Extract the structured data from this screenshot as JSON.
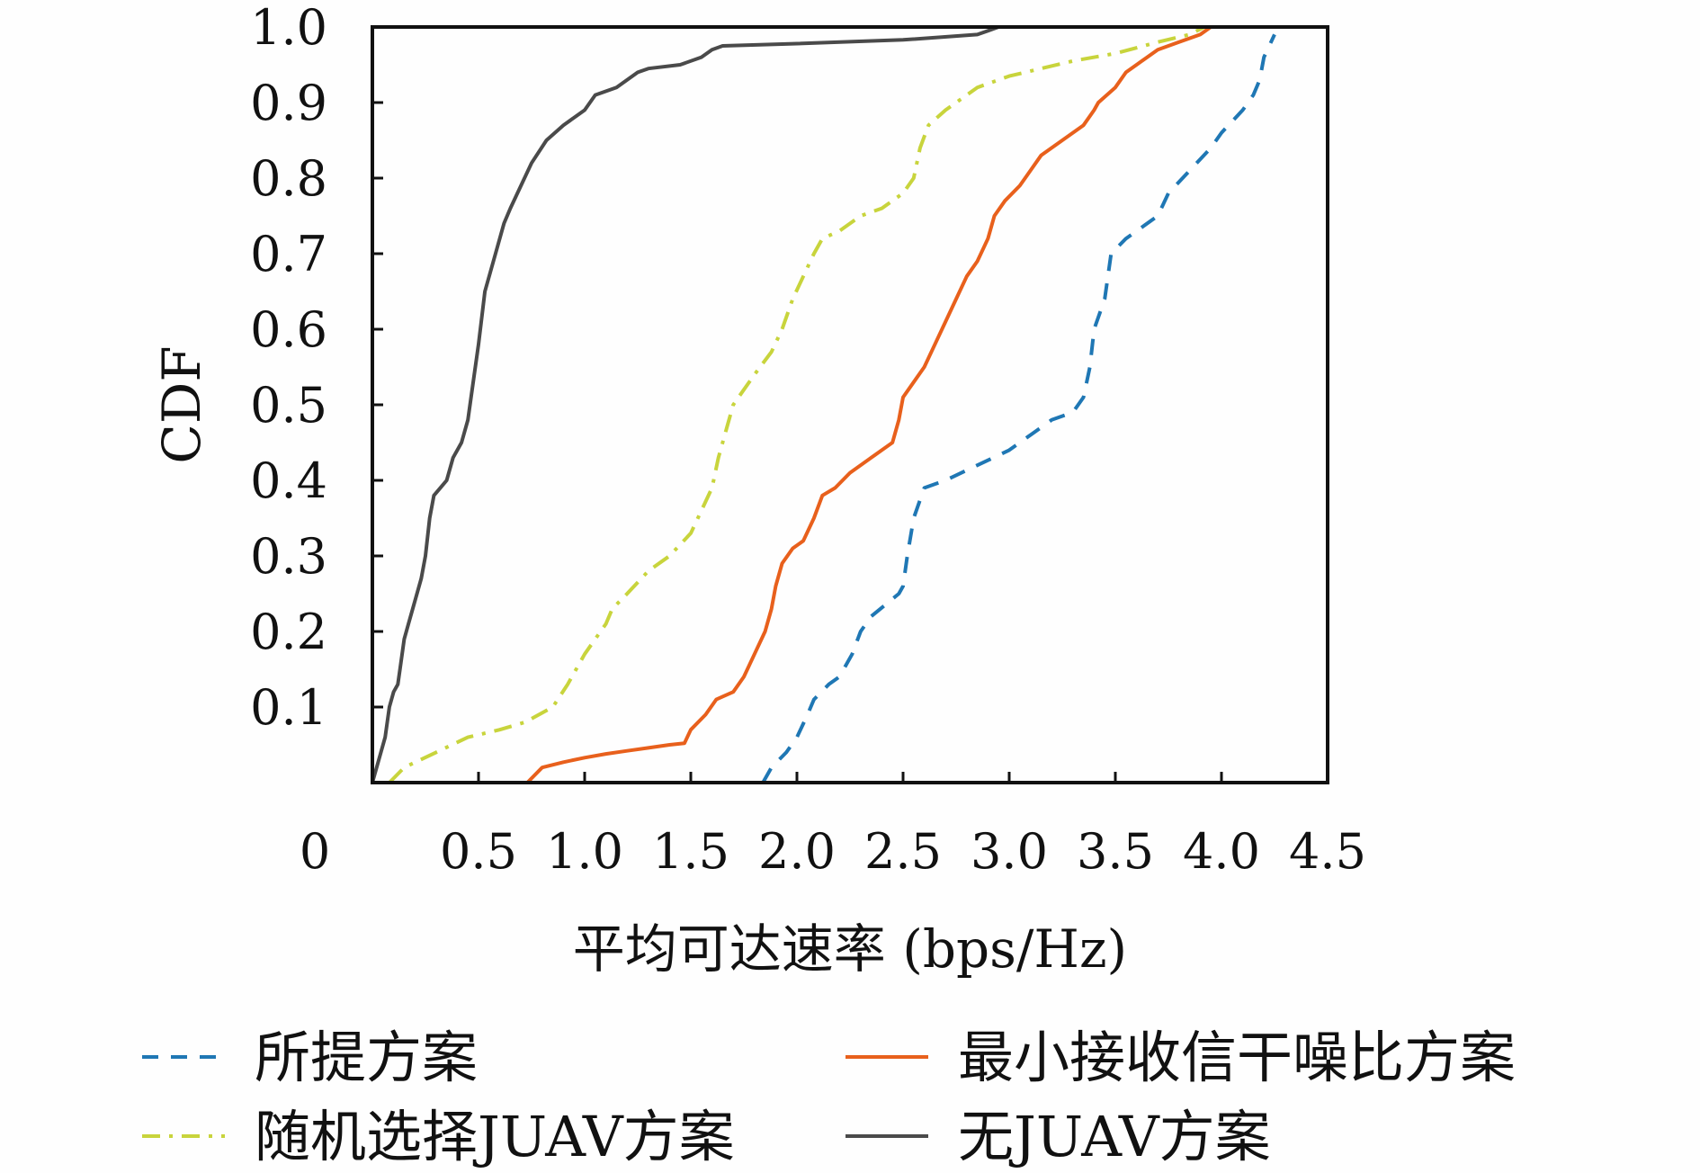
{
  "chart_data": {
    "type": "line",
    "title": "",
    "xlabel": "平均可达速率 (bps/Hz)",
    "ylabel": "CDF",
    "xlim": [
      0,
      4.5
    ],
    "ylim": [
      0,
      1.0
    ],
    "x_ticks": [
      "0",
      "0.5",
      "1.0",
      "1.5",
      "2.0",
      "2.5",
      "3.0",
      "3.5",
      "4.0",
      "4.5"
    ],
    "y_ticks": [
      "0.1",
      "0.2",
      "0.3",
      "0.4",
      "0.5",
      "0.6",
      "0.7",
      "0.8",
      "0.9",
      "1.0"
    ],
    "legend_position": "bottom",
    "grid": false,
    "series": [
      {
        "name": "所提方案",
        "color": "#1f77b4",
        "color_alt": "#3a3a3a",
        "dash": "dashed",
        "points": [
          [
            1.84,
            0
          ],
          [
            1.88,
            0.02
          ],
          [
            1.95,
            0.04
          ],
          [
            2.0,
            0.06
          ],
          [
            2.05,
            0.09
          ],
          [
            2.08,
            0.11
          ],
          [
            2.15,
            0.13
          ],
          [
            2.2,
            0.14
          ],
          [
            2.26,
            0.17
          ],
          [
            2.3,
            0.2
          ],
          [
            2.35,
            0.22
          ],
          [
            2.48,
            0.25
          ],
          [
            2.5,
            0.26
          ],
          [
            2.52,
            0.3
          ],
          [
            2.55,
            0.35
          ],
          [
            2.6,
            0.39
          ],
          [
            2.7,
            0.4
          ],
          [
            2.85,
            0.42
          ],
          [
            3.0,
            0.44
          ],
          [
            3.1,
            0.46
          ],
          [
            3.2,
            0.48
          ],
          [
            3.3,
            0.49
          ],
          [
            3.35,
            0.51
          ],
          [
            3.38,
            0.55
          ],
          [
            3.4,
            0.6
          ],
          [
            3.45,
            0.64
          ],
          [
            3.48,
            0.7
          ],
          [
            3.55,
            0.72
          ],
          [
            3.6,
            0.73
          ],
          [
            3.7,
            0.75
          ],
          [
            3.75,
            0.78
          ],
          [
            3.85,
            0.81
          ],
          [
            3.95,
            0.84
          ],
          [
            4.0,
            0.86
          ],
          [
            4.1,
            0.89
          ],
          [
            4.15,
            0.91
          ],
          [
            4.18,
            0.93
          ],
          [
            4.2,
            0.96
          ],
          [
            4.25,
            0.99
          ]
        ]
      },
      {
        "name": "最小接收信干噪比方案",
        "color": "#e8601c",
        "color_alt": "#d63c8c",
        "dash": "solid",
        "points": [
          [
            0.73,
            0
          ],
          [
            0.8,
            0.02
          ],
          [
            0.9,
            0.027
          ],
          [
            1.0,
            0.033
          ],
          [
            1.1,
            0.038
          ],
          [
            1.2,
            0.042
          ],
          [
            1.3,
            0.046
          ],
          [
            1.4,
            0.05
          ],
          [
            1.47,
            0.052
          ],
          [
            1.5,
            0.07
          ],
          [
            1.57,
            0.09
          ],
          [
            1.62,
            0.11
          ],
          [
            1.7,
            0.12
          ],
          [
            1.75,
            0.14
          ],
          [
            1.8,
            0.17
          ],
          [
            1.85,
            0.2
          ],
          [
            1.88,
            0.23
          ],
          [
            1.9,
            0.26
          ],
          [
            1.93,
            0.29
          ],
          [
            1.98,
            0.31
          ],
          [
            2.03,
            0.32
          ],
          [
            2.08,
            0.35
          ],
          [
            2.12,
            0.38
          ],
          [
            2.18,
            0.39
          ],
          [
            2.25,
            0.41
          ],
          [
            2.35,
            0.43
          ],
          [
            2.4,
            0.44
          ],
          [
            2.45,
            0.45
          ],
          [
            2.48,
            0.48
          ],
          [
            2.5,
            0.51
          ],
          [
            2.55,
            0.53
          ],
          [
            2.6,
            0.55
          ],
          [
            2.65,
            0.58
          ],
          [
            2.7,
            0.61
          ],
          [
            2.75,
            0.64
          ],
          [
            2.8,
            0.67
          ],
          [
            2.85,
            0.69
          ],
          [
            2.9,
            0.72
          ],
          [
            2.93,
            0.75
          ],
          [
            2.98,
            0.77
          ],
          [
            3.05,
            0.79
          ],
          [
            3.1,
            0.81
          ],
          [
            3.15,
            0.83
          ],
          [
            3.25,
            0.85
          ],
          [
            3.35,
            0.87
          ],
          [
            3.4,
            0.89
          ],
          [
            3.42,
            0.9
          ],
          [
            3.5,
            0.92
          ],
          [
            3.55,
            0.94
          ],
          [
            3.6,
            0.95
          ],
          [
            3.65,
            0.96
          ],
          [
            3.7,
            0.97
          ],
          [
            3.8,
            0.98
          ],
          [
            3.9,
            0.99
          ],
          [
            3.95,
            1.0
          ]
        ]
      },
      {
        "name": "随机选择JUAV方案",
        "color": "#c8d43c",
        "color_alt": "#f0a030",
        "dash": "dashdot",
        "points": [
          [
            0.08,
            0
          ],
          [
            0.15,
            0.02
          ],
          [
            0.3,
            0.04
          ],
          [
            0.45,
            0.06
          ],
          [
            0.6,
            0.07
          ],
          [
            0.72,
            0.08
          ],
          [
            0.85,
            0.1
          ],
          [
            0.92,
            0.13
          ],
          [
            1.0,
            0.17
          ],
          [
            1.1,
            0.21
          ],
          [
            1.13,
            0.23
          ],
          [
            1.2,
            0.25
          ],
          [
            1.3,
            0.28
          ],
          [
            1.4,
            0.3
          ],
          [
            1.5,
            0.33
          ],
          [
            1.55,
            0.36
          ],
          [
            1.6,
            0.39
          ],
          [
            1.63,
            0.43
          ],
          [
            1.67,
            0.47
          ],
          [
            1.7,
            0.5
          ],
          [
            1.8,
            0.54
          ],
          [
            1.88,
            0.57
          ],
          [
            1.93,
            0.6
          ],
          [
            1.98,
            0.64
          ],
          [
            2.03,
            0.67
          ],
          [
            2.08,
            0.7
          ],
          [
            2.12,
            0.72
          ],
          [
            2.2,
            0.73
          ],
          [
            2.3,
            0.75
          ],
          [
            2.4,
            0.76
          ],
          [
            2.5,
            0.78
          ],
          [
            2.55,
            0.8
          ],
          [
            2.58,
            0.84
          ],
          [
            2.62,
            0.87
          ],
          [
            2.7,
            0.89
          ],
          [
            2.8,
            0.91
          ],
          [
            2.85,
            0.92
          ],
          [
            2.95,
            0.93
          ],
          [
            3.0,
            0.935
          ],
          [
            3.15,
            0.945
          ],
          [
            3.3,
            0.955
          ],
          [
            3.5,
            0.965
          ],
          [
            3.7,
            0.98
          ],
          [
            3.85,
            0.99
          ],
          [
            3.92,
            1.0
          ]
        ]
      },
      {
        "name": "无JUAV方案",
        "color": "#4a4a4a",
        "dash": "solid",
        "points": [
          [
            0,
            0
          ],
          [
            0.03,
            0.03
          ],
          [
            0.06,
            0.06
          ],
          [
            0.08,
            0.1
          ],
          [
            0.1,
            0.12
          ],
          [
            0.12,
            0.13
          ],
          [
            0.13,
            0.15
          ],
          [
            0.15,
            0.19
          ],
          [
            0.17,
            0.21
          ],
          [
            0.2,
            0.24
          ],
          [
            0.23,
            0.27
          ],
          [
            0.25,
            0.3
          ],
          [
            0.27,
            0.35
          ],
          [
            0.29,
            0.38
          ],
          [
            0.32,
            0.39
          ],
          [
            0.35,
            0.4
          ],
          [
            0.38,
            0.43
          ],
          [
            0.42,
            0.45
          ],
          [
            0.45,
            0.48
          ],
          [
            0.47,
            0.52
          ],
          [
            0.5,
            0.58
          ],
          [
            0.53,
            0.65
          ],
          [
            0.58,
            0.7
          ],
          [
            0.62,
            0.74
          ],
          [
            0.65,
            0.76
          ],
          [
            0.7,
            0.79
          ],
          [
            0.75,
            0.82
          ],
          [
            0.82,
            0.85
          ],
          [
            0.9,
            0.87
          ],
          [
            1.0,
            0.89
          ],
          [
            1.05,
            0.91
          ],
          [
            1.15,
            0.92
          ],
          [
            1.25,
            0.94
          ],
          [
            1.3,
            0.945
          ],
          [
            1.45,
            0.95
          ],
          [
            1.55,
            0.96
          ],
          [
            1.6,
            0.97
          ],
          [
            1.65,
            0.975
          ],
          [
            2.0,
            0.978
          ],
          [
            2.5,
            0.983
          ],
          [
            2.85,
            0.99
          ],
          [
            2.9,
            0.995
          ],
          [
            2.95,
            1.0
          ]
        ]
      }
    ]
  }
}
